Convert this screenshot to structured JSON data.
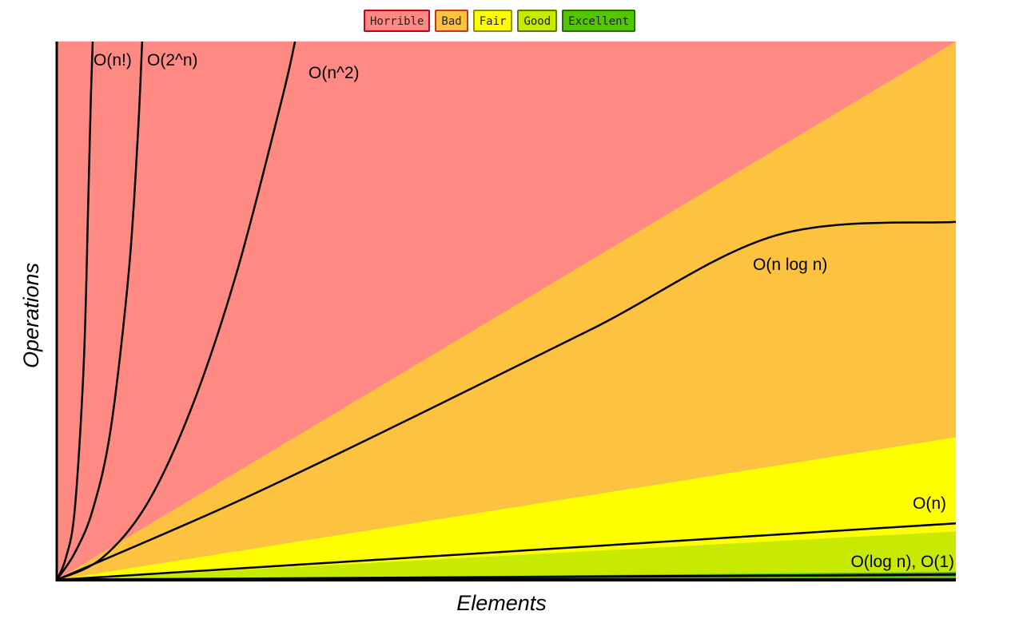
{
  "legend": [
    {
      "label": "Horrible",
      "color": "#ff8a84",
      "border": "#c8001e"
    },
    {
      "label": "Bad",
      "color": "#fec241",
      "border": "#c8361e"
    },
    {
      "label": "Fair",
      "color": "#ffff00",
      "border": "#8a8a1e"
    },
    {
      "label": "Good",
      "color": "#c8ea00",
      "border": "#5a7a00"
    },
    {
      "label": "Excellent",
      "color": "#52c600",
      "border": "#2b6a00"
    }
  ],
  "chart_data": {
    "type": "area",
    "xlabel": "Elements",
    "ylabel": "Operations",
    "xlim": [
      0,
      100
    ],
    "ylim": [
      0,
      100
    ],
    "grid": false,
    "legend_position": "top-center",
    "regions": [
      {
        "name": "Horrible",
        "color": "#ff8a84"
      },
      {
        "name": "Bad",
        "color": "#fec241",
        "top_right": 100
      },
      {
        "name": "Fair",
        "color": "#ffff00",
        "top_right": 26.5
      },
      {
        "name": "Good",
        "color": "#c8ea00",
        "top_right": 9.0
      },
      {
        "name": "Excellent",
        "color": "#52c600",
        "top_right": 1.5
      }
    ],
    "series": [
      {
        "name": "O(n!)",
        "label": "O(n!)",
        "x": [
          0,
          1,
          2,
          3,
          3.5,
          3.8,
          4.0
        ],
        "y": [
          0,
          4,
          13,
          40,
          70,
          90,
          100
        ]
      },
      {
        "name": "O(2^n)",
        "label": "O(2^n)",
        "x": [
          0,
          2,
          4,
          6,
          8,
          9,
          9.5
        ],
        "y": [
          0,
          5,
          13,
          28,
          57,
          82,
          100
        ]
      },
      {
        "name": "O(n^2)",
        "label": "O(n^2)",
        "x": [
          0,
          5,
          10,
          15,
          20,
          25,
          26.5
        ],
        "y": [
          0,
          4,
          14,
          32,
          57,
          89,
          100
        ]
      },
      {
        "name": "O(n log n)",
        "label": "O(n log n)",
        "x": [
          0,
          20,
          40,
          60,
          80,
          100
        ],
        "y": [
          0,
          14.5,
          30.5,
          47,
          64,
          66.5
        ]
      },
      {
        "name": "O(n)",
        "label": "O(n)",
        "x": [
          0,
          100
        ],
        "y": [
          0,
          10.5
        ]
      },
      {
        "name": "O(log n)",
        "label": "O(log n), O(1)",
        "x": [
          0,
          100
        ],
        "y": [
          0,
          1.0
        ]
      },
      {
        "name": "O(1)",
        "label": "",
        "x": [
          0,
          100
        ],
        "y": [
          0.5,
          0.5
        ]
      }
    ]
  }
}
